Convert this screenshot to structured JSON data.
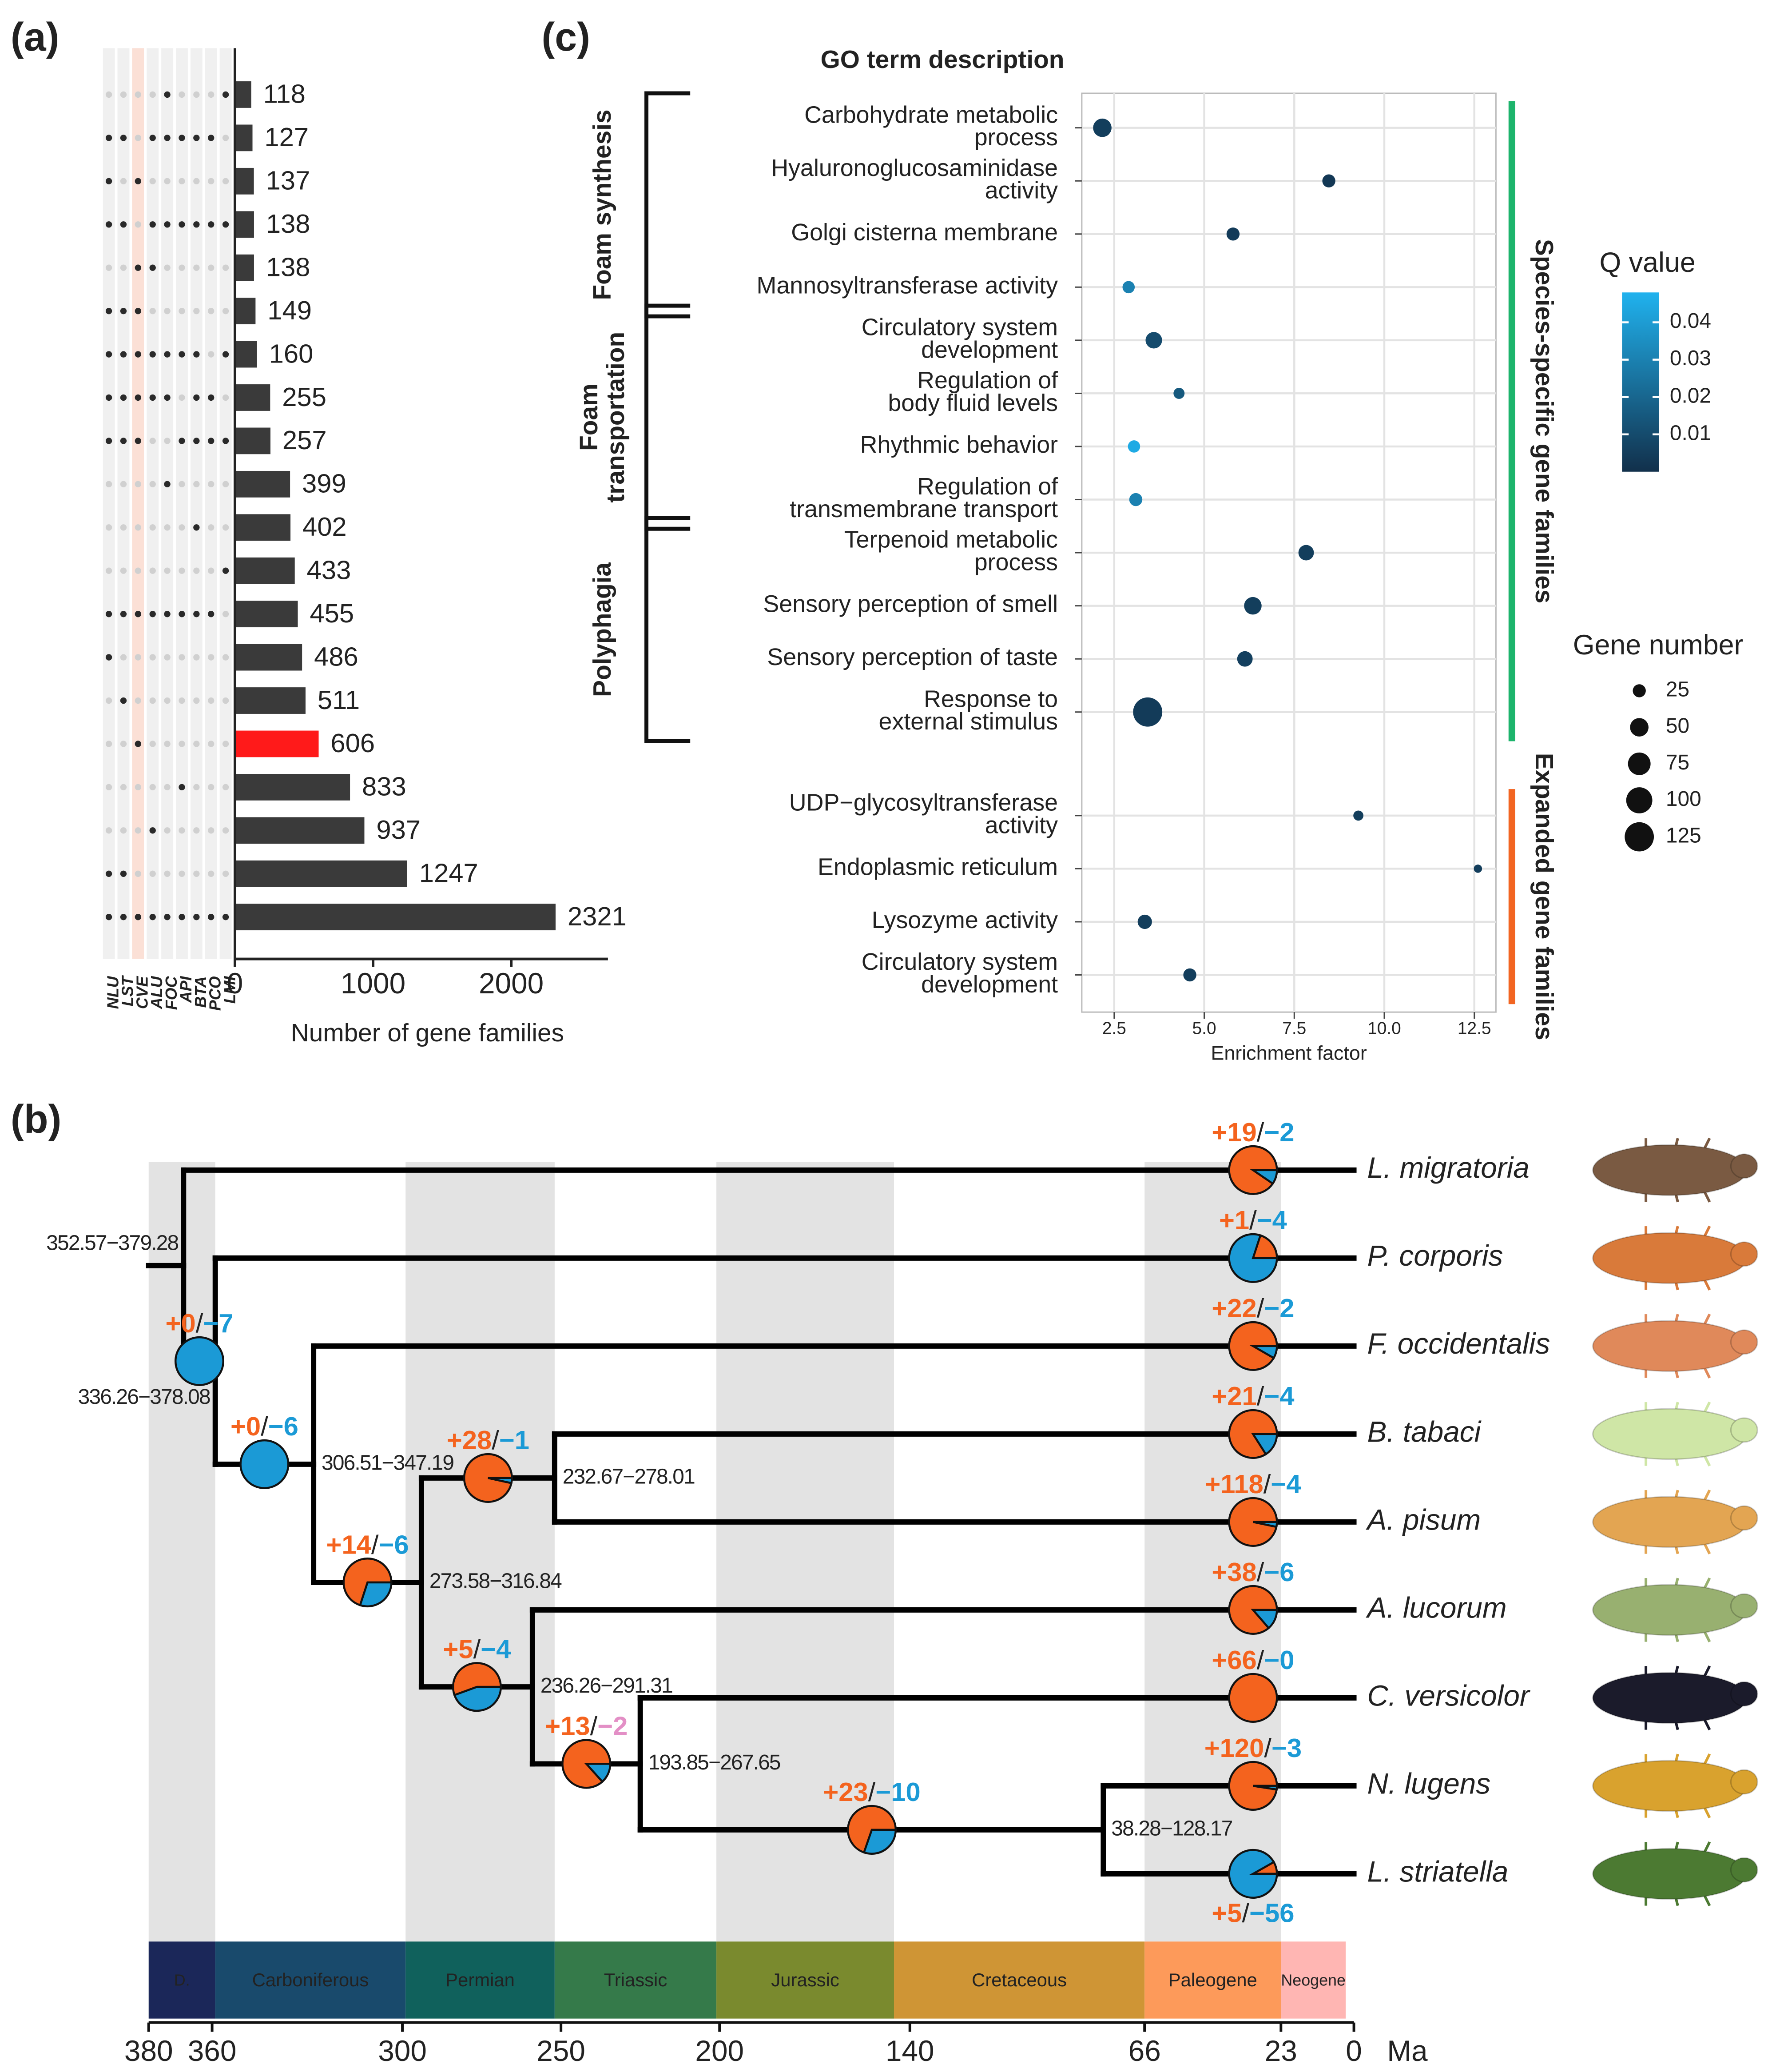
{
  "chart_data": [
    {
      "type": "bar",
      "orientation": "horizontal",
      "panel": "(a)",
      "sets": [
        "NLU",
        "LST",
        "CVE",
        "ALU",
        "FOC",
        "API",
        "BTA",
        "PCO",
        "LMI"
      ],
      "set_label_colors": [
        "#222222",
        "#222222",
        "#ff2a1a",
        "#222222",
        "#222222",
        "#222222",
        "#222222",
        "#222222",
        "#222222"
      ],
      "stripe_colors": [
        "#f0f0f0",
        "#f0f0f0",
        "#fbe0d6",
        "#f0f0f0",
        "#f0f0f0",
        "#f0f0f0",
        "#f0f0f0",
        "#f0f0f0",
        "#f0f0f0"
      ],
      "matrix": [
        [
          0,
          0,
          0,
          0,
          1,
          0,
          0,
          0,
          1
        ],
        [
          1,
          1,
          0,
          1,
          1,
          1,
          1,
          1,
          0
        ],
        [
          1,
          0,
          1,
          0,
          0,
          0,
          0,
          0,
          0
        ],
        [
          1,
          1,
          0,
          1,
          1,
          1,
          1,
          1,
          1
        ],
        [
          0,
          0,
          1,
          1,
          0,
          0,
          0,
          0,
          0
        ],
        [
          1,
          1,
          1,
          0,
          0,
          0,
          0,
          0,
          0
        ],
        [
          1,
          1,
          1,
          1,
          1,
          1,
          1,
          0,
          1
        ],
        [
          1,
          1,
          1,
          1,
          1,
          0,
          1,
          1,
          0
        ],
        [
          1,
          1,
          1,
          0,
          0,
          1,
          1,
          1,
          1
        ],
        [
          0,
          0,
          0,
          0,
          1,
          0,
          0,
          0,
          0
        ],
        [
          0,
          0,
          0,
          0,
          0,
          0,
          1,
          0,
          0
        ],
        [
          0,
          0,
          0,
          0,
          0,
          0,
          0,
          0,
          1
        ],
        [
          1,
          1,
          1,
          1,
          1,
          1,
          1,
          1,
          0
        ],
        [
          1,
          0,
          0,
          0,
          0,
          0,
          0,
          0,
          0
        ],
        [
          0,
          1,
          0,
          0,
          0,
          0,
          0,
          0,
          0
        ],
        [
          0,
          0,
          1,
          0,
          0,
          0,
          0,
          0,
          0
        ],
        [
          0,
          0,
          0,
          0,
          0,
          1,
          0,
          0,
          0
        ],
        [
          0,
          0,
          0,
          1,
          0,
          0,
          0,
          0,
          0
        ],
        [
          1,
          1,
          0,
          0,
          0,
          0,
          0,
          0,
          0
        ],
        [
          1,
          1,
          1,
          1,
          1,
          1,
          1,
          1,
          1
        ]
      ],
      "values": [
        118,
        127,
        137,
        138,
        138,
        149,
        160,
        255,
        257,
        399,
        402,
        433,
        455,
        486,
        511,
        606,
        833,
        937,
        1247,
        2321
      ],
      "colors": [
        "#3a3a3a",
        "#3a3a3a",
        "#3a3a3a",
        "#3a3a3a",
        "#3a3a3a",
        "#3a3a3a",
        "#3a3a3a",
        "#3a3a3a",
        "#3a3a3a",
        "#3a3a3a",
        "#3a3a3a",
        "#3a3a3a",
        "#3a3a3a",
        "#3a3a3a",
        "#3a3a3a",
        "#ff1a1a",
        "#3a3a3a",
        "#3a3a3a",
        "#3a3a3a",
        "#3a3a3a"
      ],
      "xlim": [
        0,
        2700
      ],
      "xticks": [
        0,
        1000,
        2000
      ],
      "xlabel": "Number of gene families"
    },
    {
      "type": "scatter",
      "panel": "(c)",
      "title": "GO term description",
      "xlabel": "Enrichment factor",
      "xlim": [
        1.6,
        13.1
      ],
      "xticks": [
        2.5,
        {
          "value": 5,
          "label": "5.0"
        },
        7.5,
        {
          "value": 10,
          "label": "10.0"
        },
        12.5
      ],
      "grid": true,
      "color_title": "Q value",
      "clim": [
        0,
        0.048
      ],
      "cticks": [
        0.04,
        0.03,
        0.02,
        0.01
      ],
      "colormap": [
        "#12304b",
        "#20b2ee"
      ],
      "size_title": "Gene number",
      "size_ticks": [
        25,
        50,
        75,
        100,
        125
      ],
      "families": [
        {
          "name": "Species-specific gene families",
          "color": "#1db46c",
          "functions": [
            {
              "name": [
                "Foam synthesis"
              ],
              "terms": [
                {
                  "term": [
                    "Carbohydrate metabolic",
                    "process"
                  ],
                  "x": 2.17,
                  "q": 0.005,
                  "genes": 50
                },
                {
                  "term": [
                    "Hyaluronoglucosaminidase",
                    "activity"
                  ],
                  "x": 8.46,
                  "q": 0.003,
                  "genes": 25
                },
                {
                  "term": [
                    "Golgi cisterna membrane"
                  ],
                  "x": 5.8,
                  "q": 0.004,
                  "genes": 25
                },
                {
                  "term": [
                    "Mannosyltransferase activity"
                  ],
                  "x": 2.9,
                  "q": 0.03,
                  "genes": 22
                }
              ]
            },
            {
              "name": [
                "Foam",
                "transportation"
              ],
              "terms": [
                {
                  "term": [
                    "Circulatory system",
                    "development"
                  ],
                  "x": 3.6,
                  "q": 0.01,
                  "genes": 40
                },
                {
                  "term": [
                    "Regulation of",
                    "body fluid levels"
                  ],
                  "x": 4.3,
                  "q": 0.015,
                  "genes": 18
                },
                {
                  "term": [
                    "Rhythmic behavior"
                  ],
                  "x": 3.05,
                  "q": 0.045,
                  "genes": 22
                },
                {
                  "term": [
                    "Regulation of",
                    "transmembrane transport"
                  ],
                  "x": 3.1,
                  "q": 0.03,
                  "genes": 25
                }
              ]
            },
            {
              "name": [
                "Polyphagia"
              ],
              "terms": [
                {
                  "term": [
                    "Terpenoid metabolic",
                    "process"
                  ],
                  "x": 7.83,
                  "q": 0.005,
                  "genes": 35
                },
                {
                  "term": [
                    "Sensory perception of smell"
                  ],
                  "x": 6.35,
                  "q": 0.005,
                  "genes": 45
                },
                {
                  "term": [
                    "Sensory perception of taste"
                  ],
                  "x": 6.13,
                  "q": 0.006,
                  "genes": 35
                },
                {
                  "term": [
                    "Response to",
                    "external stimulus"
                  ],
                  "x": 3.43,
                  "q": 0.004,
                  "genes": 125
                }
              ]
            }
          ]
        },
        {
          "name": "Expanded gene families",
          "color": "#f26522",
          "functions": [
            {
              "terms": [
                {
                  "term": [
                    "UDP−glycosyltransferase",
                    "activity"
                  ],
                  "x": 9.28,
                  "q": 0.005,
                  "genes": 15
                },
                {
                  "term": [
                    "Endoplasmic reticulum"
                  ],
                  "x": 12.6,
                  "q": 0.005,
                  "genes": 10
                },
                {
                  "term": [
                    "Lysozyme activity"
                  ],
                  "x": 3.35,
                  "q": 0.005,
                  "genes": 30
                },
                {
                  "term": [
                    "Circulatory system",
                    "development"
                  ],
                  "x": 4.6,
                  "q": 0.005,
                  "genes": 25
                }
              ]
            }
          ]
        }
      ]
    }
  ],
  "tree": {
    "panel": "(b)",
    "gain_color": "#f4631e",
    "loss_color": "#1b9ad6",
    "separator": "/",
    "xlim": [
      380,
      0
    ],
    "xticks": [
      380,
      360,
      300,
      250,
      200,
      140,
      66,
      23,
      0
    ],
    "xunit": "Ma",
    "periods": [
      {
        "name": "D.",
        "start": 380,
        "end": 359,
        "color": "#1b2759"
      },
      {
        "name": "Carboniferous",
        "start": 359,
        "end": 299,
        "color": "#194a6c"
      },
      {
        "name": "Permian",
        "start": 299,
        "end": 252,
        "color": "#10615c"
      },
      {
        "name": "Triassic",
        "start": 252,
        "end": 201,
        "color": "#357a4a"
      },
      {
        "name": "Jurassic",
        "start": 201,
        "end": 145,
        "color": "#7a8a2e"
      },
      {
        "name": "Cretaceous",
        "start": 145,
        "end": 66,
        "color": "#cf9535"
      },
      {
        "name": "Paleogene",
        "start": 66,
        "end": 23,
        "color": "#fd9a5a"
      },
      {
        "name": "Neogene",
        "start": 23,
        "end": 2.6,
        "color": "#ffb6b3"
      }
    ],
    "root": {
      "range": "352.57−379.28",
      "age": 369,
      "children": [
        {
          "name": "L. migratoria",
          "gain": 19,
          "gain_label": "+19",
          "loss": -2,
          "loss_label": "−2"
        },
        {
          "range": "336.26−378.08",
          "age": 359,
          "gain": 0,
          "gain_label": "+0",
          "loss": -7,
          "loss_label": "−7",
          "children": [
            {
              "name": "P. corporis",
              "gain": 1,
              "gain_label": "+1",
              "loss": -4,
              "loss_label": "−4"
            },
            {
              "range": "306.51−347.19",
              "age": 328,
              "gain": 0,
              "gain_label": "+0",
              "loss": -6,
              "loss_label": "−6",
              "children": [
                {
                  "name": "F. occidentalis",
                  "gain": 22,
                  "gain_label": "+22",
                  "loss": -2,
                  "loss_label": "−2"
                },
                {
                  "range": "273.58−316.84",
                  "age": 294,
                  "gain": 14,
                  "gain_label": "+14",
                  "loss": -6,
                  "loss_label": "−6",
                  "children": [
                    {
                      "range": "232.67−278.01",
                      "age": 252,
                      "gain": 28,
                      "gain_label": "+28",
                      "loss": -1,
                      "loss_label": "−1",
                      "children": [
                        {
                          "name": "B. tabaci",
                          "gain": 21,
                          "gain_label": "+21",
                          "loss": -4,
                          "loss_label": "−4"
                        },
                        {
                          "name": "A. pisum",
                          "gain": 118,
                          "gain_label": "+118",
                          "loss": -4,
                          "loss_label": "−4"
                        }
                      ]
                    },
                    {
                      "range": "236.26−291.31",
                      "age": 259,
                      "gain": 5,
                      "gain_label": "+5",
                      "loss": -4,
                      "loss_label": "−4",
                      "children": [
                        {
                          "name": "A. lucorum",
                          "gain": 38,
                          "gain_label": "+38",
                          "loss": -6,
                          "loss_label": "−6"
                        },
                        {
                          "range": "193.85−267.65",
                          "age": 225,
                          "gain": 13,
                          "gain_label": "+13",
                          "loss": -2,
                          "loss_label": "−2",
                          "loss_label_color": "#e38fc6",
                          "children": [
                            {
                              "name": "C. versicolor",
                              "gain": 66,
                              "gain_label": "+66",
                              "loss": 0,
                              "loss_label": "−0"
                            },
                            {
                              "range": "38.28−128.17",
                              "age": 79,
                              "gain": 23,
                              "gain_label": "+23",
                              "loss": -10,
                              "loss_label": "−10",
                              "children": [
                                {
                                  "name": "N. lugens",
                                  "gain": 120,
                                  "gain_label": "+120",
                                  "loss": -3,
                                  "loss_label": "−3"
                                },
                                {
                                  "name": "L. striatella",
                                  "gain": 5,
                                  "gain_label": "+5",
                                  "loss": -56,
                                  "loss_label": "−56",
                                  "label_side": "below"
                                }
                              ]
                            }
                          ]
                        }
                      ]
                    }
                  ]
                }
              ]
            }
          ]
        }
      ]
    }
  }
}
